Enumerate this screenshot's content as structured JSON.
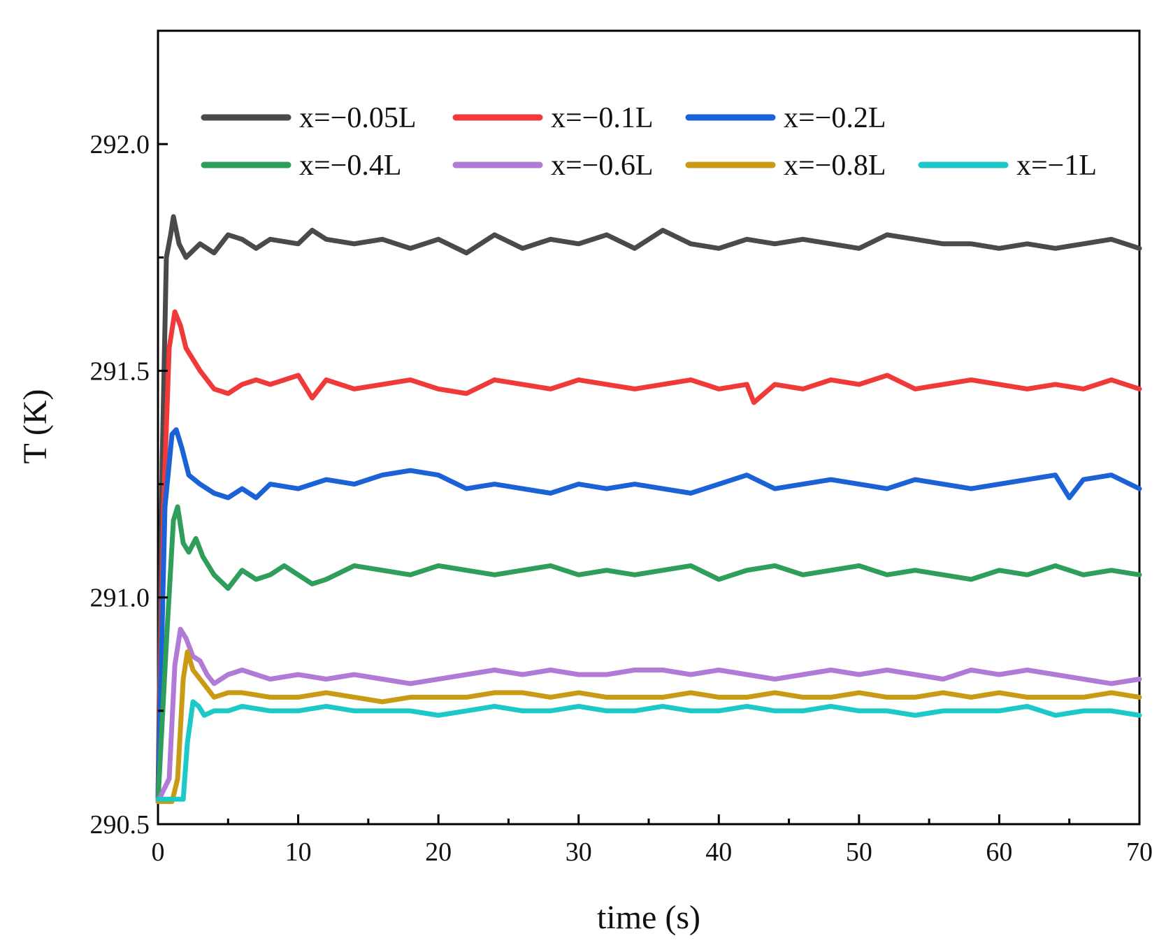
{
  "chart_data": {
    "type": "line",
    "title": "",
    "xlabel": "time (s)",
    "ylabel": "T (K)",
    "xlim": [
      0,
      70
    ],
    "ylim": [
      290.5,
      292.25
    ],
    "xticks": [
      0,
      10,
      20,
      30,
      40,
      50,
      60,
      70
    ],
    "xtick_labels": [
      "0",
      "10",
      "20",
      "30",
      "40",
      "50",
      "60",
      "70"
    ],
    "yticks": [
      290.5,
      291.0,
      291.5,
      292.0
    ],
    "ytick_labels": [
      "290.5",
      "291.0",
      "291.5",
      "292.0"
    ],
    "grid": false,
    "legend_position": "top",
    "series": [
      {
        "name": "x=−0.05L",
        "color": "#4a4a4a",
        "x": [
          0,
          0.3,
          0.6,
          0.9,
          1.1,
          1.5,
          2,
          3,
          4,
          5,
          6,
          7,
          8,
          10,
          11,
          12,
          14,
          16,
          18,
          20,
          22,
          24,
          26,
          28,
          30,
          32,
          34,
          36,
          38,
          40,
          42,
          44,
          46,
          48,
          50,
          52,
          54,
          56,
          58,
          60,
          62,
          64,
          66,
          68,
          70
        ],
        "y": [
          290.55,
          291.3,
          291.75,
          291.8,
          291.84,
          291.78,
          291.75,
          291.78,
          291.76,
          291.8,
          291.79,
          291.77,
          291.79,
          291.78,
          291.81,
          291.79,
          291.78,
          291.79,
          291.77,
          291.79,
          291.76,
          291.8,
          291.77,
          291.79,
          291.78,
          291.8,
          291.77,
          291.81,
          291.78,
          291.77,
          291.79,
          291.78,
          291.79,
          291.78,
          291.77,
          291.8,
          291.79,
          291.78,
          291.78,
          291.77,
          291.78,
          291.77,
          291.78,
          291.79,
          291.77
        ]
      },
      {
        "name": "x=−0.1L",
        "color": "#f03a3a",
        "x": [
          0,
          0.4,
          0.8,
          1.2,
          1.6,
          2,
          3,
          4,
          5,
          6,
          7,
          8,
          10,
          11,
          12,
          14,
          16,
          18,
          20,
          22,
          24,
          26,
          28,
          30,
          32,
          34,
          36,
          38,
          40,
          42,
          42.5,
          44,
          46,
          48,
          50,
          52,
          54,
          56,
          58,
          60,
          62,
          64,
          66,
          68,
          70
        ],
        "y": [
          290.55,
          291.2,
          291.55,
          291.63,
          291.6,
          291.55,
          291.5,
          291.46,
          291.45,
          291.47,
          291.48,
          291.47,
          291.49,
          291.44,
          291.48,
          291.46,
          291.47,
          291.48,
          291.46,
          291.45,
          291.48,
          291.47,
          291.46,
          291.48,
          291.47,
          291.46,
          291.47,
          291.48,
          291.46,
          291.47,
          291.43,
          291.47,
          291.46,
          291.48,
          291.47,
          291.49,
          291.46,
          291.47,
          291.48,
          291.47,
          291.46,
          291.47,
          291.46,
          291.48,
          291.46
        ]
      },
      {
        "name": "x=−0.2L",
        "color": "#1a62d6",
        "x": [
          0,
          0.5,
          1,
          1.3,
          1.7,
          2.2,
          3,
          4,
          5,
          6,
          7,
          8,
          10,
          12,
          14,
          16,
          18,
          20,
          22,
          24,
          26,
          28,
          30,
          32,
          34,
          36,
          38,
          40,
          42,
          44,
          46,
          48,
          50,
          52,
          54,
          56,
          58,
          60,
          62,
          64,
          65,
          66,
          68,
          70
        ],
        "y": [
          290.55,
          291.2,
          291.36,
          291.37,
          291.33,
          291.27,
          291.25,
          291.23,
          291.22,
          291.24,
          291.22,
          291.25,
          291.24,
          291.26,
          291.25,
          291.27,
          291.28,
          291.27,
          291.24,
          291.25,
          291.24,
          291.23,
          291.25,
          291.24,
          291.25,
          291.24,
          291.23,
          291.25,
          291.27,
          291.24,
          291.25,
          291.26,
          291.25,
          291.24,
          291.26,
          291.25,
          291.24,
          291.25,
          291.26,
          291.27,
          291.22,
          291.26,
          291.27,
          291.24
        ]
      },
      {
        "name": "x=−0.4L",
        "color": "#2f9e5a",
        "x": [
          0,
          0.6,
          1.1,
          1.4,
          1.8,
          2.2,
          2.7,
          3.2,
          4,
          5,
          6,
          7,
          8,
          9,
          10,
          11,
          12,
          14,
          16,
          18,
          20,
          22,
          24,
          26,
          28,
          30,
          32,
          34,
          36,
          38,
          40,
          42,
          44,
          46,
          48,
          50,
          52,
          54,
          56,
          58,
          60,
          62,
          64,
          66,
          68,
          70
        ],
        "y": [
          290.55,
          290.9,
          291.17,
          291.2,
          291.12,
          291.1,
          291.13,
          291.09,
          291.05,
          291.02,
          291.06,
          291.04,
          291.05,
          291.07,
          291.05,
          291.03,
          291.04,
          291.07,
          291.06,
          291.05,
          291.07,
          291.06,
          291.05,
          291.06,
          291.07,
          291.05,
          291.06,
          291.05,
          291.06,
          291.07,
          291.04,
          291.06,
          291.07,
          291.05,
          291.06,
          291.07,
          291.05,
          291.06,
          291.05,
          291.04,
          291.06,
          291.05,
          291.07,
          291.05,
          291.06,
          291.05
        ]
      },
      {
        "name": "x=−0.6L",
        "color": "#b07ad6",
        "x": [
          0,
          0.8,
          1.2,
          1.6,
          2,
          2.5,
          3,
          3.5,
          4,
          5,
          6,
          7,
          8,
          10,
          12,
          14,
          16,
          18,
          20,
          22,
          24,
          26,
          28,
          30,
          32,
          34,
          36,
          38,
          40,
          42,
          44,
          46,
          48,
          50,
          52,
          54,
          56,
          58,
          60,
          62,
          64,
          66,
          68,
          70
        ],
        "y": [
          290.55,
          290.6,
          290.85,
          290.93,
          290.91,
          290.87,
          290.86,
          290.83,
          290.81,
          290.83,
          290.84,
          290.83,
          290.82,
          290.83,
          290.82,
          290.83,
          290.82,
          290.81,
          290.82,
          290.83,
          290.84,
          290.83,
          290.84,
          290.83,
          290.83,
          290.84,
          290.84,
          290.83,
          290.84,
          290.83,
          290.82,
          290.83,
          290.84,
          290.83,
          290.84,
          290.83,
          290.82,
          290.84,
          290.83,
          290.84,
          290.83,
          290.82,
          290.81,
          290.82
        ]
      },
      {
        "name": "x=−0.8L",
        "color": "#c99a14",
        "x": [
          0,
          1,
          1.4,
          1.8,
          2.1,
          2.5,
          3,
          3.5,
          4,
          5,
          6,
          8,
          10,
          12,
          14,
          16,
          18,
          20,
          22,
          24,
          26,
          28,
          30,
          32,
          34,
          36,
          38,
          40,
          42,
          44,
          46,
          48,
          50,
          52,
          54,
          56,
          58,
          60,
          62,
          64,
          66,
          68,
          70
        ],
        "y": [
          290.55,
          290.55,
          290.6,
          290.82,
          290.88,
          290.84,
          290.82,
          290.8,
          290.78,
          290.79,
          290.79,
          290.78,
          290.78,
          290.79,
          290.78,
          290.77,
          290.78,
          290.78,
          290.78,
          290.79,
          290.79,
          290.78,
          290.79,
          290.78,
          290.78,
          290.78,
          290.79,
          290.78,
          290.78,
          290.79,
          290.78,
          290.78,
          290.79,
          290.78,
          290.78,
          290.79,
          290.78,
          290.79,
          290.78,
          290.78,
          290.78,
          290.79,
          290.78
        ]
      },
      {
        "name": "x=−1L",
        "color": "#1cc8c8",
        "x": [
          0,
          1,
          1.8,
          2.1,
          2.5,
          2.9,
          3.3,
          4,
          5,
          6,
          8,
          10,
          12,
          14,
          16,
          18,
          20,
          22,
          24,
          26,
          28,
          30,
          32,
          34,
          36,
          38,
          40,
          42,
          44,
          46,
          48,
          50,
          52,
          54,
          56,
          58,
          60,
          62,
          64,
          66,
          68,
          70
        ],
        "y": [
          290.555,
          290.555,
          290.555,
          290.68,
          290.77,
          290.76,
          290.74,
          290.75,
          290.75,
          290.76,
          290.75,
          290.75,
          290.76,
          290.75,
          290.75,
          290.75,
          290.74,
          290.75,
          290.76,
          290.75,
          290.75,
          290.76,
          290.75,
          290.75,
          290.76,
          290.75,
          290.75,
          290.76,
          290.75,
          290.75,
          290.76,
          290.75,
          290.75,
          290.74,
          290.75,
          290.75,
          290.75,
          290.76,
          290.74,
          290.75,
          290.75,
          290.74
        ]
      }
    ]
  }
}
